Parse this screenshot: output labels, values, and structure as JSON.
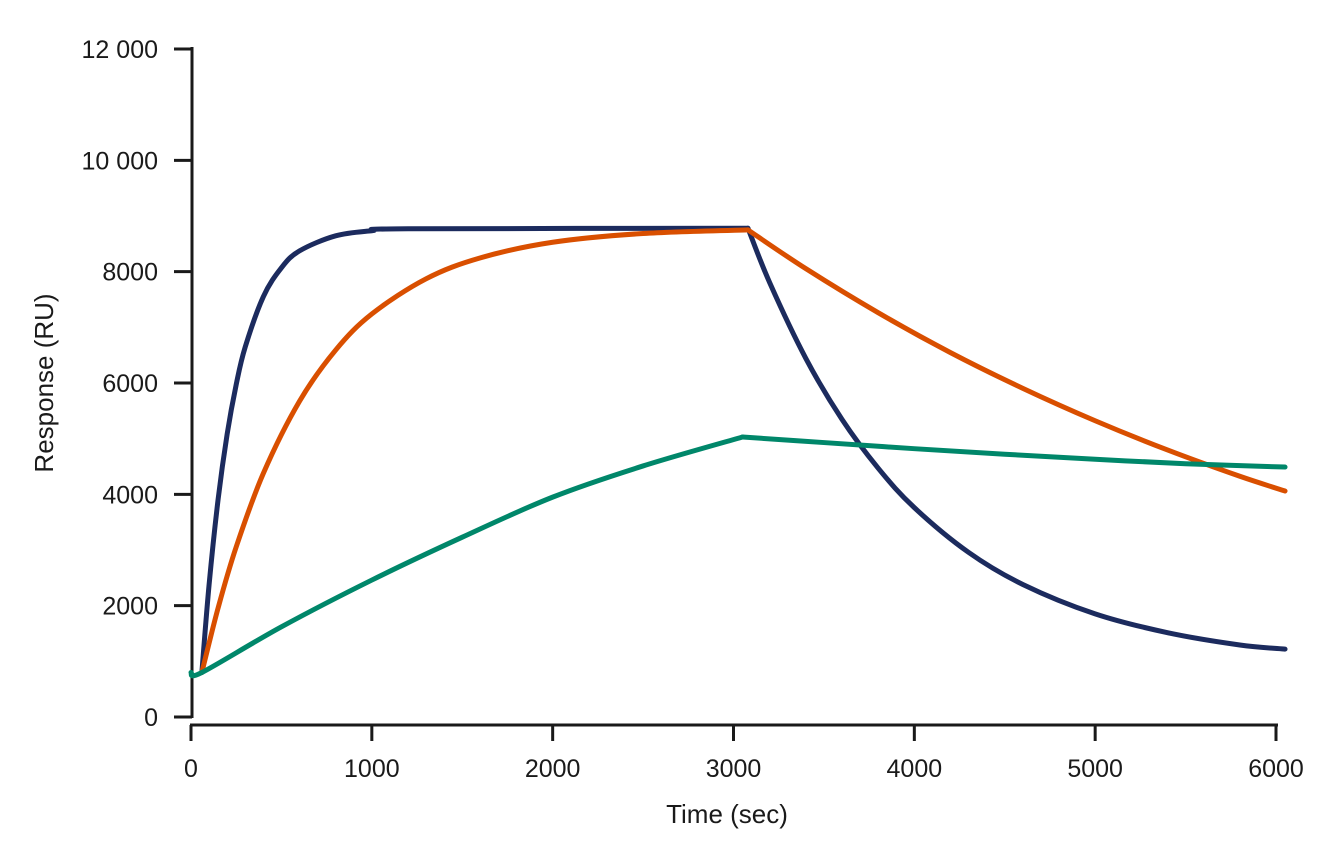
{
  "chart_data": {
    "type": "line",
    "title": "",
    "xlabel": "Time (sec)",
    "ylabel": "Response (RU)",
    "xlim": [
      0,
      6000
    ],
    "ylim": [
      0,
      12000
    ],
    "xticks": [
      0,
      1000,
      2000,
      3000,
      4000,
      5000,
      6000
    ],
    "xtick_labels": [
      "0",
      "1000",
      "2000",
      "3000",
      "4000",
      "5000",
      "6000"
    ],
    "yticks": [
      0,
      2000,
      4000,
      6000,
      8000,
      10000,
      12000
    ],
    "ytick_labels": [
      "0",
      "2000",
      "4000",
      "6000",
      "8000",
      "10 000",
      "12 000"
    ],
    "grid": false,
    "legend": "none",
    "series": [
      {
        "color": "#1c2b5e",
        "association": {
          "x": [
            60,
            100,
            150,
            200,
            250,
            300,
            400,
            500,
            600,
            800,
            1000,
            1200,
            3080
          ],
          "y": [
            800,
            2375,
            3912,
            5084,
            5972,
            6649,
            7551,
            8070,
            8373,
            8644,
            8735,
            8770,
            8780
          ]
        },
        "dissociation": {
          "x": [
            3080,
            3200,
            3400,
            3600,
            3800,
            4000,
            4300,
            4600,
            5000,
            5400,
            5800,
            6050
          ],
          "y": [
            8780,
            7803,
            6442,
            5346,
            4470,
            3761,
            2957,
            2381,
            1853,
            1515,
            1294,
            1220
          ]
        }
      },
      {
        "color": "#d94f00",
        "association": {
          "x": [
            60,
            150,
            250,
            400,
            600,
            800,
            1000,
            1300,
            1600,
            2000,
            2500,
            3080
          ],
          "y": [
            800,
            1960,
            3056,
            4376,
            5672,
            6592,
            7240,
            7872,
            8248,
            8528,
            8686,
            8750
          ]
        },
        "dissociation": {
          "x": [
            3080,
            3400,
            3800,
            4200,
            4600,
            5000,
            5400,
            5800,
            6050
          ],
          "y": [
            8750,
            8054,
            7263,
            6546,
            5904,
            5322,
            4797,
            4324,
            4060
          ]
        }
      },
      {
        "color": "#00876a",
        "association": {
          "x": [
            0,
            60,
            500,
            1000,
            1500,
            2000,
            2500,
            3050
          ],
          "y": [
            800,
            800,
            1620,
            2460,
            3230,
            3950,
            4510,
            5030
          ]
        },
        "dissociation": {
          "x": [
            3050,
            3500,
            4000,
            4500,
            5000,
            5500,
            6050
          ],
          "y": [
            5030,
            4930,
            4820,
            4720,
            4630,
            4550,
            4490
          ]
        }
      }
    ]
  }
}
